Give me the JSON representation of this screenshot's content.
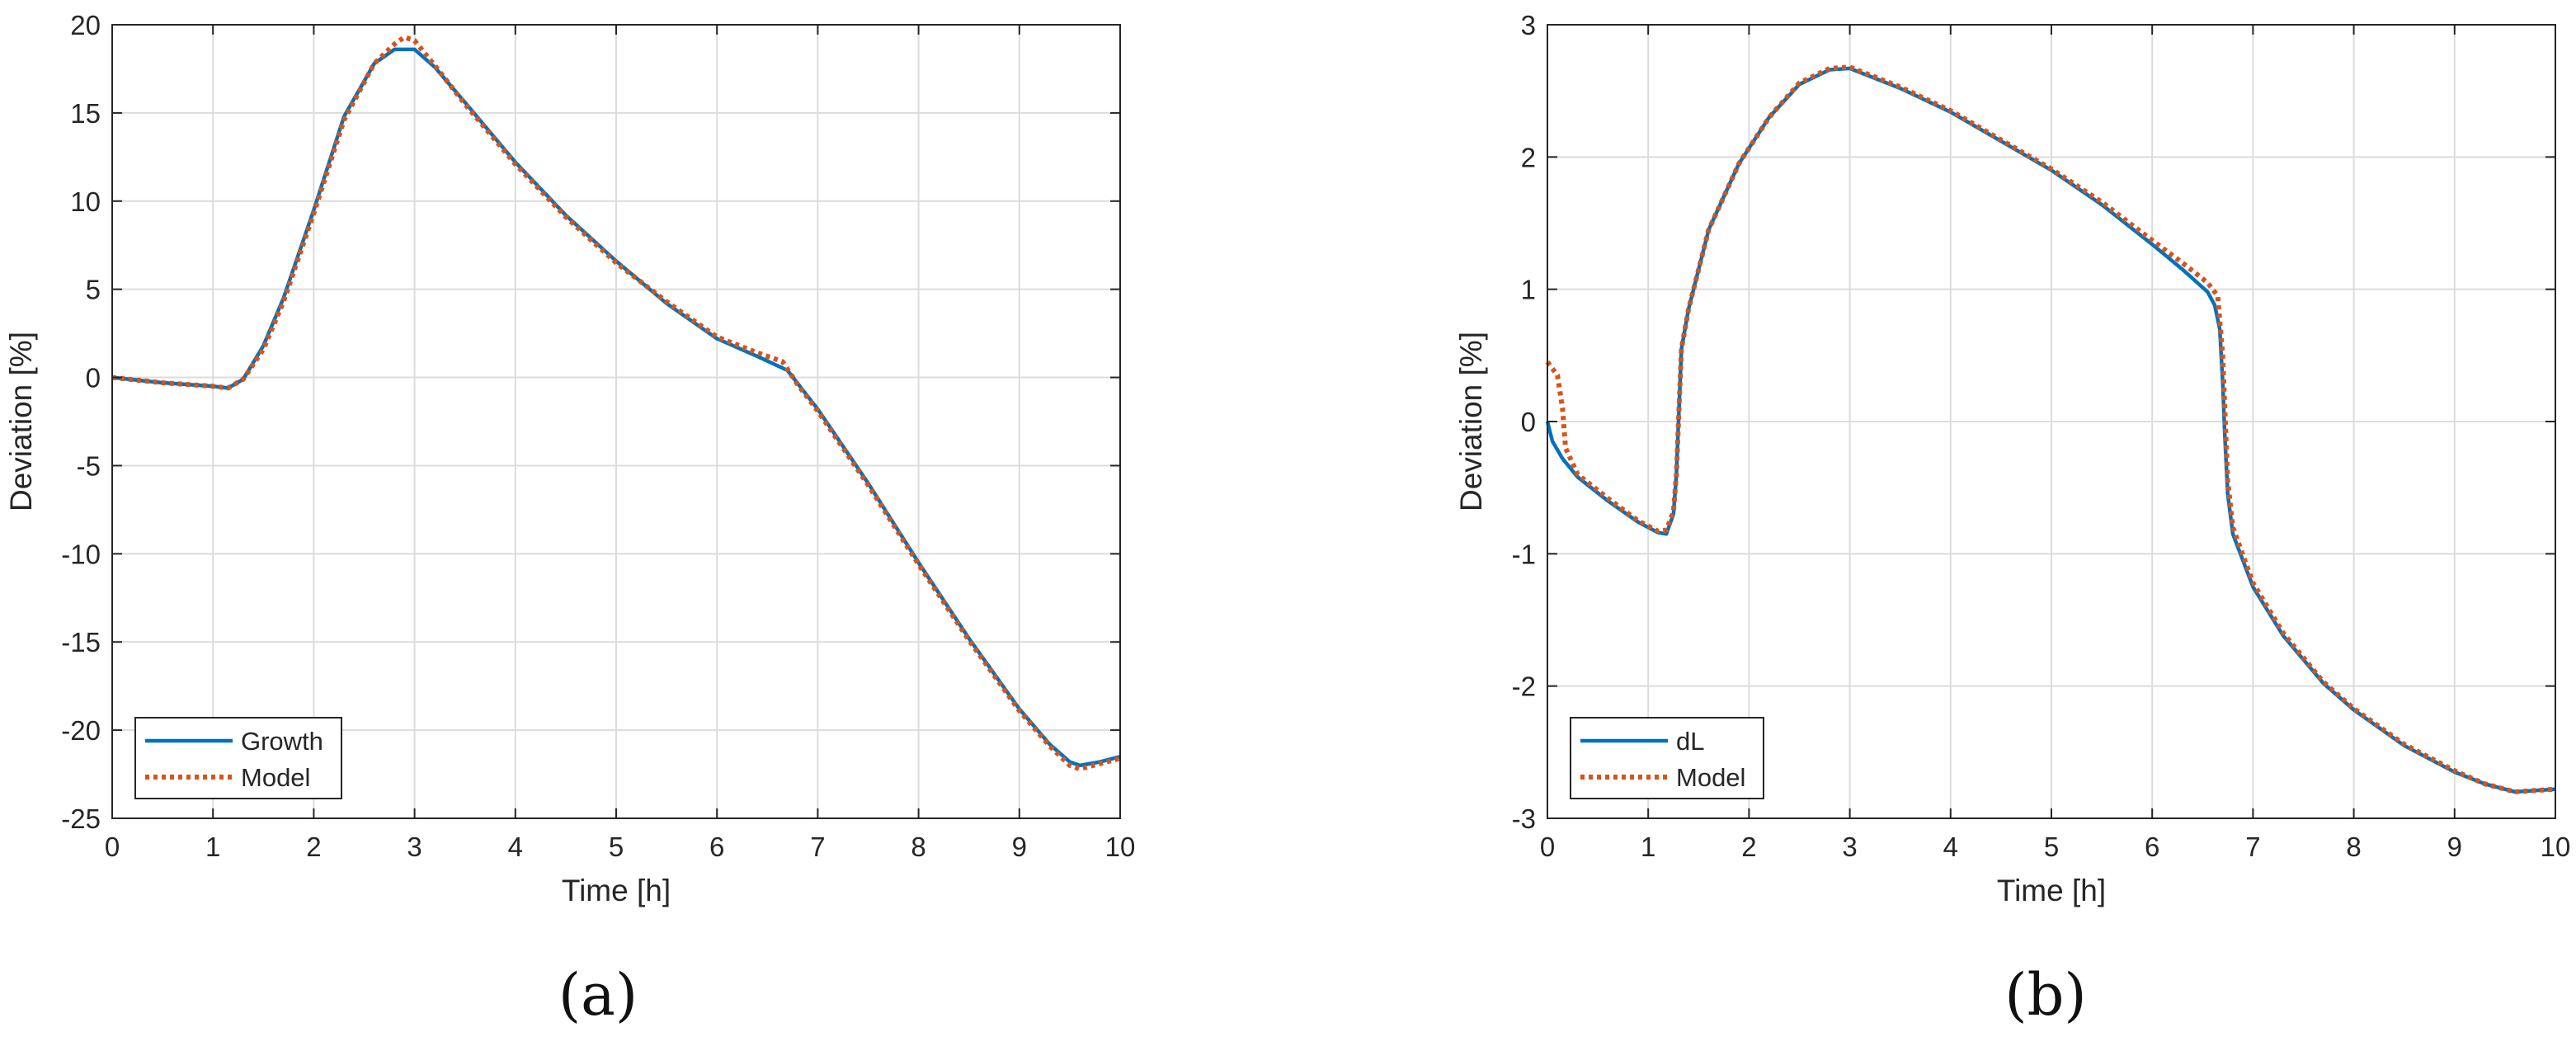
{
  "colors": {
    "series1": "#0072BD",
    "series2": "#D95319",
    "grid": "#dcdcdc",
    "axis": "#262626",
    "text": "#262626"
  },
  "chart_data": [
    {
      "type": "line",
      "panel_label": "(a)",
      "xlabel": "Time [h]",
      "ylabel": "Deviation [%]",
      "xlim": [
        0,
        10
      ],
      "ylim": [
        -25,
        20
      ],
      "xticks": [
        0,
        1,
        2,
        3,
        4,
        5,
        6,
        7,
        8,
        9,
        10
      ],
      "yticks": [
        -25,
        -20,
        -15,
        -10,
        -5,
        0,
        5,
        10,
        15,
        20
      ],
      "grid": true,
      "legend_position": "bottom-left",
      "series": [
        {
          "name": "Growth",
          "style": "solid",
          "x": [
            0,
            0.5,
            1.0,
            1.15,
            1.3,
            1.5,
            1.7,
            2.0,
            2.3,
            2.6,
            2.8,
            3.0,
            3.2,
            3.5,
            4.0,
            4.5,
            5.0,
            5.5,
            6.0,
            6.4,
            6.7,
            7.0,
            7.5,
            8.0,
            8.5,
            9.0,
            9.3,
            9.5,
            9.6,
            9.8,
            10.0
          ],
          "y": [
            0,
            -0.3,
            -0.5,
            -0.6,
            -0.1,
            1.8,
            4.5,
            9.5,
            14.8,
            17.8,
            18.6,
            18.6,
            17.6,
            15.6,
            12.2,
            9.2,
            6.6,
            4.2,
            2.2,
            1.2,
            0.4,
            -1.8,
            -6.0,
            -10.5,
            -14.8,
            -18.8,
            -20.8,
            -21.8,
            -22.0,
            -21.8,
            -21.5
          ]
        },
        {
          "name": "Model",
          "style": "dotted",
          "x": [
            0,
            0.5,
            1.0,
            1.15,
            1.3,
            1.5,
            1.7,
            2.0,
            2.3,
            2.6,
            2.8,
            2.9,
            3.0,
            3.2,
            3.5,
            4.0,
            4.5,
            5.0,
            5.5,
            6.0,
            6.4,
            6.65,
            6.8,
            7.0,
            7.5,
            8.0,
            8.5,
            9.0,
            9.3,
            9.5,
            9.6,
            9.8,
            10.0
          ],
          "y": [
            0,
            -0.3,
            -0.5,
            -0.6,
            -0.1,
            1.6,
            4.3,
            9.3,
            14.6,
            17.8,
            18.9,
            19.3,
            19.1,
            17.7,
            15.5,
            12.1,
            9.1,
            6.5,
            4.3,
            2.3,
            1.4,
            0.9,
            -0.4,
            -1.9,
            -6.1,
            -10.6,
            -14.9,
            -18.9,
            -20.9,
            -22.0,
            -22.2,
            -21.9,
            -21.6
          ]
        }
      ]
    },
    {
      "type": "line",
      "panel_label": "(b)",
      "xlabel": "Time [h]",
      "ylabel": "Deviation [%]",
      "xlim": [
        0,
        10
      ],
      "ylim": [
        -3,
        3
      ],
      "xticks": [
        0,
        1,
        2,
        3,
        4,
        5,
        6,
        7,
        8,
        9,
        10
      ],
      "yticks": [
        -3,
        -2,
        -1,
        0,
        1,
        2,
        3
      ],
      "grid": true,
      "legend_position": "bottom-left",
      "series": [
        {
          "name": "dL",
          "style": "solid",
          "x": [
            0,
            0.05,
            0.15,
            0.3,
            0.6,
            0.9,
            1.1,
            1.18,
            1.25,
            1.28,
            1.3,
            1.33,
            1.4,
            1.6,
            1.9,
            2.2,
            2.5,
            2.8,
            3.0,
            3.5,
            4.0,
            4.5,
            5.0,
            5.5,
            6.0,
            6.3,
            6.55,
            6.62,
            6.67,
            6.7,
            6.72,
            6.75,
            6.8,
            7.0,
            7.3,
            7.7,
            8.0,
            8.5,
            9.0,
            9.3,
            9.6,
            9.8,
            10.0
          ],
          "y": [
            0,
            -0.15,
            -0.28,
            -0.42,
            -0.6,
            -0.76,
            -0.84,
            -0.85,
            -0.7,
            -0.4,
            0.0,
            0.55,
            0.85,
            1.45,
            1.95,
            2.3,
            2.55,
            2.66,
            2.67,
            2.52,
            2.34,
            2.12,
            1.9,
            1.64,
            1.34,
            1.15,
            0.98,
            0.88,
            0.7,
            0.3,
            -0.1,
            -0.55,
            -0.85,
            -1.25,
            -1.62,
            -1.98,
            -2.18,
            -2.45,
            -2.65,
            -2.74,
            -2.8,
            -2.79,
            -2.78
          ]
        },
        {
          "name": "Model",
          "style": "dotted",
          "x": [
            0,
            0.1,
            0.15,
            0.18,
            0.3,
            0.6,
            0.9,
            1.1,
            1.18,
            1.25,
            1.28,
            1.3,
            1.33,
            1.4,
            1.6,
            1.9,
            2.2,
            2.5,
            2.8,
            3.0,
            3.5,
            4.0,
            4.5,
            5.0,
            5.5,
            6.0,
            6.3,
            6.55,
            6.65,
            6.7,
            6.72,
            6.75,
            6.8,
            7.0,
            7.3,
            7.7,
            8.0,
            8.5,
            9.0,
            9.3,
            9.6,
            9.8,
            10.0
          ],
          "y": [
            0.45,
            0.35,
            0.1,
            -0.2,
            -0.4,
            -0.58,
            -0.75,
            -0.83,
            -0.82,
            -0.68,
            -0.4,
            0.0,
            0.55,
            0.85,
            1.45,
            1.95,
            2.3,
            2.56,
            2.67,
            2.68,
            2.53,
            2.35,
            2.13,
            1.91,
            1.66,
            1.37,
            1.2,
            1.05,
            0.95,
            0.5,
            0.1,
            -0.45,
            -0.8,
            -1.22,
            -1.6,
            -1.97,
            -2.17,
            -2.44,
            -2.64,
            -2.74,
            -2.8,
            -2.79,
            -2.78
          ]
        }
      ]
    }
  ]
}
